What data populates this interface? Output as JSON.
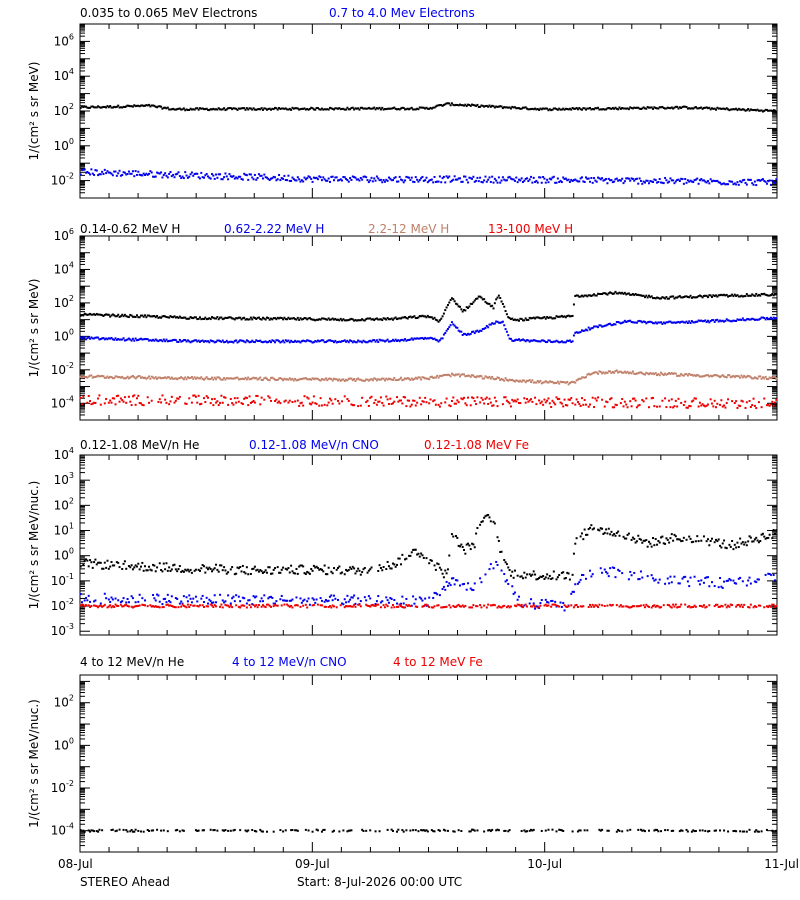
{
  "colors": {
    "black": "#000000",
    "blue": "#0000ee",
    "tan": "#c0806a",
    "red": "#ee0000"
  },
  "footer": {
    "spacecraft": "STEREO Ahead",
    "start_label": "Start:  8-Jul-2026 00:00 UTC"
  },
  "chart_data": [
    {
      "type": "scatter",
      "ylabel": "1/(cm² s sr MeV)",
      "x_ticks": [
        "08-Jul",
        "09-Jul",
        "10-Jul",
        "11-Jul"
      ],
      "x_range_days": [
        0,
        3
      ],
      "log_y": true,
      "y_tick_exponents": [
        -2,
        0,
        2,
        4,
        6
      ],
      "y_range_exp": [
        -3.0,
        7.0
      ],
      "series": [
        {
          "name": "0.035 to 0.065 MeV Electrons",
          "color": "#000000",
          "keypoints": [
            [
              0,
              2.2
            ],
            [
              0.3,
              2.3
            ],
            [
              0.4,
              2.1
            ],
            [
              1.5,
              2.15
            ],
            [
              1.58,
              2.4
            ],
            [
              1.7,
              2.3
            ],
            [
              2.0,
              2.1
            ],
            [
              2.6,
              2.2
            ],
            [
              3.0,
              2.0
            ]
          ],
          "noise": 0.06,
          "drop": 0
        },
        {
          "name": "0.7 to 4.0 Mev Electrons",
          "color": "#0000ee",
          "keypoints": [
            [
              0,
              -1.5
            ],
            [
              0.5,
              -1.7
            ],
            [
              1.0,
              -1.9
            ],
            [
              2.0,
              -1.95
            ],
            [
              3.0,
              -2.1
            ]
          ],
          "noise": 0.18,
          "drop": 0
        }
      ]
    },
    {
      "type": "scatter",
      "ylabel": "1/(cm² s sr MeV)",
      "x_ticks": [
        "08-Jul",
        "09-Jul",
        "10-Jul",
        "11-Jul"
      ],
      "x_range_days": [
        0,
        3
      ],
      "log_y": true,
      "y_tick_exponents": [
        -4,
        -2,
        0,
        2,
        4,
        6
      ],
      "y_range_exp": [
        -5.0,
        6.0
      ],
      "series": [
        {
          "name": "0.14-0.62 MeV H",
          "color": "#000000",
          "keypoints": [
            [
              0,
              1.3
            ],
            [
              0.5,
              1.1
            ],
            [
              1.2,
              1.0
            ],
            [
              1.35,
              1.05
            ],
            [
              1.5,
              1.2
            ],
            [
              1.55,
              0.9
            ],
            [
              1.6,
              2.3
            ],
            [
              1.65,
              1.5
            ],
            [
              1.72,
              2.4
            ],
            [
              1.78,
              1.7
            ],
            [
              1.8,
              2.5
            ],
            [
              1.85,
              1.0
            ],
            [
              1.9,
              1.0
            ],
            [
              2.0,
              1.1
            ],
            [
              2.12,
              1.2
            ],
            [
              2.13,
              2.4
            ],
            [
              2.3,
              2.6
            ],
            [
              2.5,
              2.3
            ],
            [
              2.7,
              2.4
            ],
            [
              3.0,
              2.5
            ]
          ],
          "noise": 0.07,
          "drop": 0
        },
        {
          "name": "0.62-2.22 MeV H",
          "color": "#0000ee",
          "keypoints": [
            [
              0,
              -0.1
            ],
            [
              0.5,
              -0.3
            ],
            [
              1.2,
              -0.3
            ],
            [
              1.35,
              -0.25
            ],
            [
              1.5,
              -0.1
            ],
            [
              1.55,
              -0.3
            ],
            [
              1.6,
              0.8
            ],
            [
              1.65,
              0.1
            ],
            [
              1.72,
              0.3
            ],
            [
              1.78,
              0.8
            ],
            [
              1.82,
              0.9
            ],
            [
              1.85,
              -0.2
            ],
            [
              2.0,
              -0.3
            ],
            [
              2.12,
              -0.3
            ],
            [
              2.13,
              0.2
            ],
            [
              2.2,
              0.5
            ],
            [
              2.35,
              0.9
            ],
            [
              2.5,
              0.8
            ],
            [
              2.7,
              0.9
            ],
            [
              3.0,
              1.1
            ]
          ],
          "noise": 0.07,
          "drop": 0
        },
        {
          "name": "2.2-12 MeV H",
          "color": "#c0806a",
          "keypoints": [
            [
              0,
              -2.4
            ],
            [
              0.5,
              -2.5
            ],
            [
              1.2,
              -2.6
            ],
            [
              1.5,
              -2.5
            ],
            [
              1.6,
              -2.3
            ],
            [
              1.7,
              -2.4
            ],
            [
              1.85,
              -2.6
            ],
            [
              2.0,
              -2.75
            ],
            [
              2.12,
              -2.8
            ],
            [
              2.2,
              -2.2
            ],
            [
              2.3,
              -2.1
            ],
            [
              2.4,
              -2.2
            ],
            [
              2.6,
              -2.3
            ],
            [
              3.0,
              -2.5
            ]
          ],
          "noise": 0.08,
          "drop": 0
        },
        {
          "name": "13-100 MeV H",
          "color": "#ee0000",
          "keypoints": [
            [
              0,
              -3.8
            ],
            [
              1.5,
              -3.9
            ],
            [
              3.0,
              -4.0
            ]
          ],
          "noise": 0.3,
          "drop": 0.2
        }
      ]
    },
    {
      "type": "scatter",
      "ylabel": "1/(cm² s sr MeV/nuc.)",
      "x_ticks": [
        "08-Jul",
        "09-Jul",
        "10-Jul",
        "11-Jul"
      ],
      "x_range_days": [
        0,
        3
      ],
      "log_y": true,
      "y_tick_exponents": [
        -3,
        -2,
        -1,
        0,
        1,
        2,
        3,
        4
      ],
      "y_range_exp": [
        -3.15,
        4.0
      ],
      "series": [
        {
          "name": "0.12-1.08 MeV/n He",
          "color": "#000000",
          "keypoints": [
            [
              0,
              -0.3
            ],
            [
              0.3,
              -0.45
            ],
            [
              0.8,
              -0.6
            ],
            [
              1.0,
              -0.55
            ],
            [
              1.2,
              -0.6
            ],
            [
              1.35,
              -0.35
            ],
            [
              1.45,
              0.2
            ],
            [
              1.52,
              -0.3
            ],
            [
              1.58,
              -0.8
            ],
            [
              1.6,
              0.9
            ],
            [
              1.65,
              0.2
            ],
            [
              1.7,
              0.5
            ],
            [
              1.72,
              1.4
            ],
            [
              1.78,
              1.5
            ],
            [
              1.8,
              0.5
            ],
            [
              1.85,
              -0.7
            ],
            [
              2.0,
              -0.8
            ],
            [
              2.12,
              -0.8
            ],
            [
              2.13,
              0.5
            ],
            [
              2.2,
              1.1
            ],
            [
              2.3,
              0.9
            ],
            [
              2.45,
              0.5
            ],
            [
              2.55,
              0.7
            ],
            [
              2.7,
              0.6
            ],
            [
              2.8,
              0.4
            ],
            [
              3.0,
              0.9
            ]
          ],
          "noise": 0.18,
          "drop": 0.1
        },
        {
          "name": "0.12-1.08 MeV/n CNO",
          "color": "#0000ee",
          "keypoints": [
            [
              0,
              -1.7
            ],
            [
              1.5,
              -1.8
            ],
            [
              1.6,
              -1.0
            ],
            [
              1.7,
              -1.3
            ],
            [
              1.78,
              -0.3
            ],
            [
              1.82,
              -0.8
            ],
            [
              1.9,
              -1.9
            ],
            [
              2.1,
              -2.0
            ],
            [
              2.15,
              -0.9
            ],
            [
              2.25,
              -0.6
            ],
            [
              2.4,
              -0.8
            ],
            [
              2.6,
              -1.0
            ],
            [
              2.8,
              -1.1
            ],
            [
              3.0,
              -0.8
            ]
          ],
          "noise": 0.2,
          "drop": 0.35
        },
        {
          "name": "0.12-1.08 MeV Fe",
          "color": "#ee0000",
          "keypoints": [
            [
              0,
              -2.0
            ],
            [
              1.5,
              -2.0
            ],
            [
              3.0,
              -2.0
            ]
          ],
          "noise": 0.06,
          "drop": 0.25
        }
      ]
    },
    {
      "type": "scatter",
      "ylabel": "1/(cm² s sr MeV/nuc.)",
      "x_ticks": [
        "08-Jul",
        "09-Jul",
        "10-Jul",
        "11-Jul"
      ],
      "x_range_days": [
        0,
        3
      ],
      "log_y": true,
      "y_tick_exponents": [
        -4,
        -2,
        0,
        2
      ],
      "y_range_exp": [
        -5.0,
        3.3
      ],
      "series": [
        {
          "name": "4 to 12 MeV/n He",
          "color": "#000000",
          "keypoints": [
            [
              0,
              -4.0
            ],
            [
              1.5,
              -4.0
            ],
            [
              3.0,
              -4.0
            ]
          ],
          "noise": 0.05,
          "drop": 0.55
        },
        {
          "name": "4 to 12 MeV/n CNO",
          "color": "#0000ee",
          "keypoints": [],
          "noise": 0,
          "drop": 1
        },
        {
          "name": "4 to 12 MeV Fe",
          "color": "#ee0000",
          "keypoints": [],
          "noise": 0,
          "drop": 1
        }
      ]
    }
  ]
}
